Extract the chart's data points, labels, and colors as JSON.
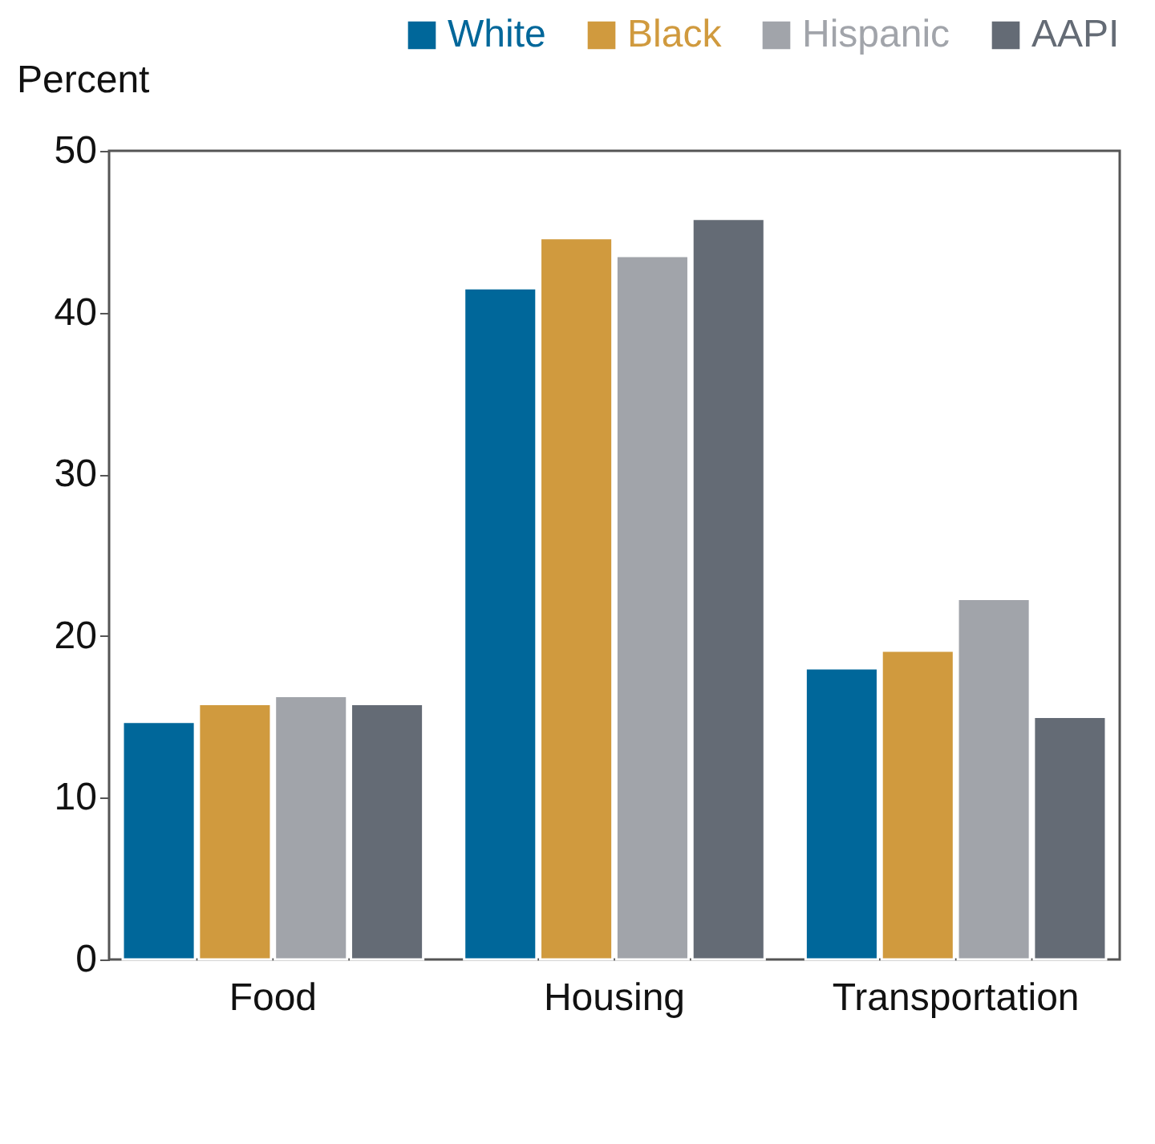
{
  "chart_data": {
    "type": "bar",
    "ylabel": "Percent",
    "categories": [
      "Food",
      "Housing",
      "Transportation"
    ],
    "series": [
      {
        "name": "White",
        "color": "#00679a",
        "values": [
          14.7,
          41.5,
          18.0
        ]
      },
      {
        "name": "Black",
        "color": "#d09a3e",
        "values": [
          15.8,
          44.6,
          19.1
        ]
      },
      {
        "name": "Hispanic",
        "color": "#a1a4aa",
        "values": [
          16.3,
          43.5,
          22.3
        ]
      },
      {
        "name": "AAPI",
        "color": "#646b75",
        "values": [
          15.8,
          45.8,
          15.0
        ]
      }
    ],
    "ylim": [
      0,
      50
    ],
    "yticks": [
      0,
      10,
      20,
      30,
      40,
      50
    ],
    "grid": false,
    "legend": "top right"
  }
}
